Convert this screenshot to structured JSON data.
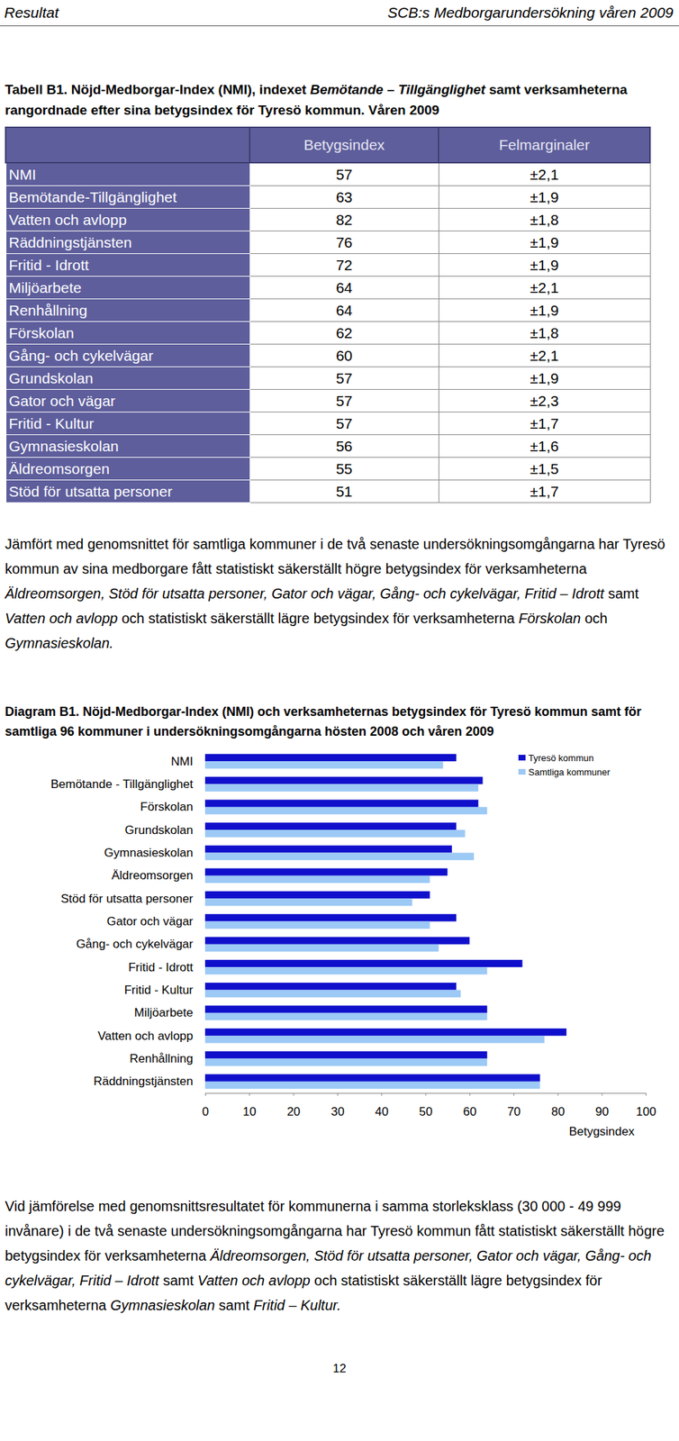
{
  "header": {
    "left": "Resultat",
    "right": "SCB:s Medborgarundersökning våren 2009"
  },
  "table": {
    "title": [
      {
        "text": "Tabell B1. Nöjd-Medborgar-Index (NMI), indexet ",
        "italic": false
      },
      {
        "text": "Bemötande",
        "italic": true
      },
      {
        "text": " – ",
        "italic": false
      },
      {
        "text": "Tillgänglighet",
        "italic": true
      },
      {
        "text": " samt verksamheterna rangordnade efter sina betygsindex för Tyresö kommun. Våren 2009",
        "italic": false
      }
    ],
    "columns": [
      "Betygsindex",
      "Felmarginaler"
    ],
    "rows": [
      [
        "NMI",
        57,
        "±2,1"
      ],
      [
        "Bemötande-Tillgänglighet",
        63,
        "±1,9"
      ],
      [
        "Vatten och avlopp",
        82,
        "±1,8"
      ],
      [
        "Räddningstjänsten",
        76,
        "±1,9"
      ],
      [
        "Fritid - Idrott",
        72,
        "±1,9"
      ],
      [
        "Miljöarbete",
        64,
        "±2,1"
      ],
      [
        "Renhållning",
        64,
        "±1,9"
      ],
      [
        "Förskolan",
        62,
        "±1,8"
      ],
      [
        "Gång- och cykelvägar",
        60,
        "±2,1"
      ],
      [
        "Grundskolan",
        57,
        "±1,9"
      ],
      [
        "Gator och vägar",
        57,
        "±2,3"
      ],
      [
        "Fritid - Kultur",
        57,
        "±1,7"
      ],
      [
        "Gymnasieskolan",
        56,
        "±1,6"
      ],
      [
        "Äldreomsorgen",
        55,
        "±1,5"
      ],
      [
        "Stöd för utsatta personer",
        51,
        "±1,7"
      ]
    ]
  },
  "paragraph_1": [
    {
      "text": "Jämfört med genomsnittet för samtliga kommuner i de två senaste undersökningsomgångarna har Tyresö kommun av sina medborgare fått statistiskt säkerställt högre betygsindex för verksamheterna ",
      "italic": false
    },
    {
      "text": "Äldreomsorgen, Stöd för utsatta personer, Gator och vägar, Gång- och cykelvägar, Fritid – Idrott",
      "italic": true
    },
    {
      "text": " samt ",
      "italic": false
    },
    {
      "text": "Vatten och avlopp",
      "italic": true
    },
    {
      "text": " och statistiskt säkerställt lägre betygsindex för verksamheterna ",
      "italic": false
    },
    {
      "text": "Förskolan",
      "italic": true
    },
    {
      "text": " och ",
      "italic": false
    },
    {
      "text": "Gymnasieskolan.",
      "italic": true
    }
  ],
  "chart_data": {
    "type": "bar",
    "orientation": "horizontal",
    "title": "Diagram B1. Nöjd-Medborgar-Index (NMI) och verksamheternas betygsindex för Tyresö kommun samt för samtliga 96 kommuner i undersökningsomgångarna hösten 2008 och våren 2009",
    "x_label": "Betygsindex",
    "categories": [
      "NMI",
      "Bemötande - Tillgänglighet",
      "Förskolan",
      "Grundskolan",
      "Gymnasieskolan",
      "Äldreomsorgen",
      "Stöd för utsatta personer",
      "Gator och vägar",
      "Gång- och cykelvägar",
      "Fritid - Idrott",
      "Fritid - Kultur",
      "Miljöarbete",
      "Vatten och avlopp",
      "Renhållning",
      "Räddningstjänsten"
    ],
    "series": [
      {
        "name": "Tyresö kommun",
        "color": "#1010cc",
        "values": [
          57,
          63,
          62,
          57,
          56,
          55,
          51,
          57,
          60,
          72,
          57,
          64,
          82,
          64,
          76
        ]
      },
      {
        "name": "Samtliga kommuner",
        "color": "#9cc9f5",
        "values": [
          54,
          62,
          64,
          59,
          61,
          51,
          47,
          51,
          53,
          64,
          58,
          64,
          77,
          64,
          76
        ]
      }
    ],
    "xlim": [
      0,
      100
    ],
    "xticks": [
      0,
      10,
      20,
      30,
      40,
      50,
      60,
      70,
      80,
      90,
      100
    ],
    "grid": false,
    "legend": "top-right",
    "data_labels": false
  },
  "paragraph_2": [
    {
      "text": "Vid jämförelse med genomsnittsresultatet för kommunerna i samma storleksklass (30 000 - 49 999 invånare) i de två senaste undersökningsomgångarna har Tyresö kommun fått statistiskt säkerställt högre betygsindex för verksamheterna ",
      "italic": false
    },
    {
      "text": "Äldreomsorgen, Stöd för utsatta personer, Gator och vägar, Gång- och cykelvägar, Fritid – Idrott",
      "italic": true
    },
    {
      "text": " samt ",
      "italic": false
    },
    {
      "text": "Vatten och avlopp",
      "italic": true
    },
    {
      "text": " och statistiskt säkerställt lägre betygsindex för verksamheterna ",
      "italic": false
    },
    {
      "text": "Gymnasieskolan",
      "italic": true
    },
    {
      "text": " samt ",
      "italic": false
    },
    {
      "text": "Fritid – Kultur.",
      "italic": true
    }
  ],
  "page_number": 12
}
